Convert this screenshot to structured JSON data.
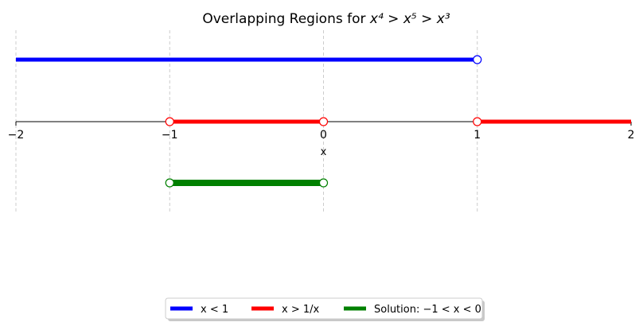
{
  "chart_data": {
    "type": "line",
    "title": {
      "prefix": "Overlapping Regions for ",
      "math": "x⁴ > x⁵ > x³"
    },
    "xlabel": "x",
    "xlim": [
      -2,
      2
    ],
    "xticks": [
      -2,
      -1,
      0,
      1,
      2
    ],
    "xtick_labels": [
      "−2",
      "−1",
      "0",
      "1",
      "2"
    ],
    "vertical_gridlines_at": [
      -2,
      -1,
      0,
      1
    ],
    "number_line_at": "middle",
    "series": [
      {
        "label": "x < 1",
        "color": "#0000ff",
        "row": 0,
        "segments": [
          {
            "from": -2,
            "to": 1,
            "open_ends": [
              1
            ]
          }
        ]
      },
      {
        "label": "x > 1/x",
        "color": "#ff0000",
        "row": 1,
        "segments": [
          {
            "from": -1,
            "to": 0,
            "open_ends": [
              -1,
              0
            ]
          },
          {
            "from": 1,
            "to": 2,
            "open_ends": [
              1
            ]
          }
        ]
      },
      {
        "label": "Solution: −1 < x < 0",
        "color": "#008000",
        "row": 2,
        "segments": [
          {
            "from": -1,
            "to": 0,
            "open_ends": [
              -1,
              0
            ]
          }
        ]
      }
    ],
    "legend": {
      "placement": "bottom-center",
      "entries": [
        {
          "label": "x < 1",
          "color": "#0000ff"
        },
        {
          "label": "x > 1/x",
          "color": "#ff0000"
        },
        {
          "label": "Solution: −1 < x < 0",
          "color": "#008000"
        }
      ]
    }
  }
}
